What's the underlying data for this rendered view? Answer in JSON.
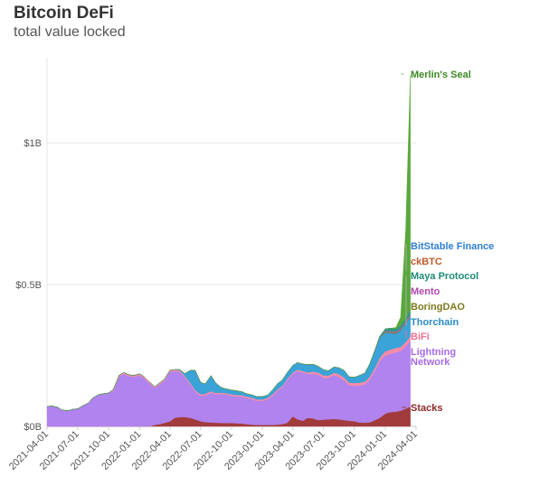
{
  "chart_data": {
    "type": "area",
    "title": "Bitcoin DeFi",
    "subtitle": "total value locked",
    "xlabel": "",
    "ylabel": "",
    "ylim": [
      0,
      1300000000
    ],
    "grid": "horizontal",
    "y_ticks": [
      {
        "value": 0,
        "label": "$0B"
      },
      {
        "value": 500000000,
        "label": "$0.5B"
      },
      {
        "value": 1000000000,
        "label": "$1B"
      }
    ],
    "x_tick_labels": [
      "2021-04-01",
      "2021-07-01",
      "2021-10-01",
      "2022-01-01",
      "2022-04-01",
      "2022-07-01",
      "2022-10-01",
      "2023-01-01",
      "2023-04-01",
      "2023-07-01",
      "2023-10-01",
      "2024-01-01",
      "2024-04-01"
    ],
    "x": [
      "2021-04-01",
      "2021-04-15",
      "2021-05-01",
      "2021-05-15",
      "2021-06-01",
      "2021-06-15",
      "2021-07-01",
      "2021-07-15",
      "2021-08-01",
      "2021-08-15",
      "2021-09-01",
      "2021-09-15",
      "2021-10-01",
      "2021-10-15",
      "2021-11-01",
      "2021-11-15",
      "2021-12-01",
      "2021-12-15",
      "2022-01-01",
      "2022-01-15",
      "2022-02-01",
      "2022-02-15",
      "2022-03-01",
      "2022-03-15",
      "2022-04-01",
      "2022-04-15",
      "2022-05-01",
      "2022-05-15",
      "2022-06-01",
      "2022-06-15",
      "2022-07-01",
      "2022-07-15",
      "2022-08-01",
      "2022-08-15",
      "2022-09-01",
      "2022-09-15",
      "2022-10-01",
      "2022-10-15",
      "2022-11-01",
      "2022-11-15",
      "2022-12-01",
      "2022-12-15",
      "2023-01-01",
      "2023-01-15",
      "2023-02-01",
      "2023-02-15",
      "2023-03-01",
      "2023-03-15",
      "2023-04-01",
      "2023-04-15",
      "2023-05-01",
      "2023-05-15",
      "2023-06-01",
      "2023-06-15",
      "2023-07-01",
      "2023-07-15",
      "2023-08-01",
      "2023-08-15",
      "2023-09-01",
      "2023-09-15",
      "2023-10-01",
      "2023-10-15",
      "2023-11-01",
      "2023-11-15",
      "2023-12-01",
      "2023-12-15",
      "2024-01-01",
      "2024-01-15",
      "2024-02-01",
      "2024-02-15",
      "2024-03-01",
      "2024-03-15"
    ],
    "series": [
      {
        "name": "Stacks",
        "color": "#a23b3b",
        "values": [
          0,
          0,
          0,
          0,
          0,
          0,
          0,
          0,
          0,
          0,
          0,
          0,
          0,
          0,
          0,
          0,
          0,
          0,
          0,
          0,
          0,
          5000000,
          8000000,
          12000000,
          18000000,
          30000000,
          33000000,
          33000000,
          30000000,
          25000000,
          18000000,
          15000000,
          14000000,
          13000000,
          12000000,
          12000000,
          12000000,
          11000000,
          10000000,
          8000000,
          6000000,
          5000000,
          5000000,
          5000000,
          5000000,
          6000000,
          8000000,
          12000000,
          35000000,
          25000000,
          20000000,
          30000000,
          28000000,
          22000000,
          24000000,
          25000000,
          26000000,
          25000000,
          22000000,
          20000000,
          18000000,
          14000000,
          13000000,
          14000000,
          22000000,
          30000000,
          45000000,
          50000000,
          52000000,
          55000000,
          62000000,
          70000000
        ]
      },
      {
        "name": "Lightning Network",
        "color": "#b083ee",
        "values": [
          70000000,
          72000000,
          68000000,
          58000000,
          55000000,
          60000000,
          62000000,
          72000000,
          82000000,
          100000000,
          112000000,
          115000000,
          118000000,
          125000000,
          175000000,
          185000000,
          177000000,
          175000000,
          180000000,
          170000000,
          150000000,
          130000000,
          140000000,
          148000000,
          175000000,
          165000000,
          160000000,
          140000000,
          118000000,
          98000000,
          90000000,
          95000000,
          105000000,
          100000000,
          102000000,
          100000000,
          96000000,
          95000000,
          95000000,
          92000000,
          90000000,
          85000000,
          85000000,
          90000000,
          105000000,
          120000000,
          130000000,
          150000000,
          150000000,
          170000000,
          170000000,
          155000000,
          157000000,
          160000000,
          148000000,
          145000000,
          155000000,
          150000000,
          140000000,
          125000000,
          125000000,
          130000000,
          135000000,
          150000000,
          175000000,
          200000000,
          205000000,
          205000000,
          210000000,
          210000000,
          220000000,
          230000000
        ]
      },
      {
        "name": "BiFi",
        "color": "#f58ba8",
        "values": [
          0,
          0,
          0,
          0,
          0,
          0,
          0,
          0,
          0,
          0,
          0,
          0,
          0,
          5000000,
          5000000,
          5000000,
          5000000,
          5000000,
          5000000,
          5000000,
          5000000,
          5000000,
          5000000,
          5000000,
          5000000,
          5000000,
          5000000,
          5000000,
          5000000,
          5000000,
          5000000,
          5000000,
          5000000,
          5000000,
          5000000,
          5000000,
          5000000,
          5000000,
          5000000,
          5000000,
          5000000,
          5000000,
          5000000,
          5000000,
          5000000,
          5000000,
          5000000,
          5000000,
          5000000,
          5000000,
          5000000,
          5000000,
          8000000,
          8000000,
          8000000,
          8000000,
          8000000,
          10000000,
          10000000,
          10000000,
          10000000,
          10000000,
          10000000,
          10000000,
          10000000,
          12000000,
          15000000,
          15000000,
          15000000,
          15000000,
          15000000,
          18000000
        ]
      },
      {
        "name": "Thorchain",
        "color": "#3aa3d8",
        "values": [
          0,
          0,
          0,
          0,
          0,
          0,
          0,
          0,
          0,
          0,
          0,
          0,
          0,
          0,
          0,
          0,
          0,
          0,
          0,
          0,
          0,
          0,
          0,
          0,
          0,
          0,
          2000000,
          8000000,
          45000000,
          70000000,
          42000000,
          35000000,
          55000000,
          35000000,
          18000000,
          15000000,
          15000000,
          15000000,
          12000000,
          10000000,
          10000000,
          10000000,
          10000000,
          10000000,
          15000000,
          20000000,
          20000000,
          22000000,
          25000000,
          25000000,
          25000000,
          28000000,
          26000000,
          22000000,
          20000000,
          18000000,
          20000000,
          22000000,
          25000000,
          20000000,
          20000000,
          25000000,
          30000000,
          45000000,
          60000000,
          70000000,
          65000000,
          60000000,
          50000000,
          58000000,
          65000000,
          68000000
        ]
      },
      {
        "name": "BoringDAO",
        "color": "#7d7a1f",
        "values": [
          0,
          0,
          0,
          0,
          0,
          0,
          0,
          0,
          0,
          0,
          0,
          0,
          0,
          0,
          0,
          0,
          0,
          0,
          0,
          0,
          0,
          0,
          0,
          0,
          0,
          0,
          0,
          0,
          0,
          0,
          0,
          0,
          0,
          0,
          0,
          0,
          0,
          0,
          0,
          0,
          0,
          0,
          0,
          0,
          0,
          0,
          0,
          0,
          0,
          0,
          0,
          0,
          0,
          0,
          0,
          0,
          0,
          0,
          0,
          0,
          0,
          0,
          0,
          0,
          0,
          0,
          3000000,
          3000000,
          3000000,
          3000000,
          3000000,
          3000000
        ]
      },
      {
        "name": "Mento",
        "color": "#c25dbe",
        "values": [
          0,
          0,
          0,
          0,
          0,
          0,
          0,
          0,
          0,
          0,
          0,
          0,
          0,
          0,
          0,
          0,
          0,
          0,
          0,
          0,
          0,
          0,
          0,
          0,
          0,
          0,
          0,
          0,
          0,
          0,
          0,
          0,
          0,
          0,
          0,
          0,
          0,
          0,
          0,
          0,
          0,
          0,
          0,
          0,
          0,
          0,
          0,
          0,
          0,
          0,
          0,
          0,
          0,
          0,
          0,
          0,
          0,
          0,
          0,
          0,
          0,
          0,
          0,
          0,
          0,
          0,
          3000000,
          3000000,
          4000000,
          4000000,
          5000000,
          5000000
        ]
      },
      {
        "name": "Maya Protocol",
        "color": "#2a9b86",
        "values": [
          0,
          0,
          0,
          0,
          0,
          0,
          0,
          0,
          0,
          0,
          0,
          0,
          0,
          0,
          0,
          0,
          0,
          0,
          0,
          0,
          0,
          0,
          0,
          0,
          0,
          0,
          0,
          0,
          0,
          0,
          0,
          0,
          0,
          0,
          0,
          0,
          0,
          0,
          0,
          0,
          0,
          0,
          0,
          0,
          0,
          0,
          0,
          0,
          0,
          0,
          0,
          0,
          0,
          0,
          0,
          0,
          0,
          0,
          0,
          0,
          0,
          0,
          0,
          0,
          3000000,
          5000000,
          8000000,
          10000000,
          10000000,
          10000000,
          12000000,
          15000000
        ]
      },
      {
        "name": "ckBTC",
        "color": "#c35a2c",
        "values": [
          0,
          0,
          0,
          0,
          0,
          0,
          0,
          0,
          0,
          0,
          0,
          0,
          0,
          0,
          0,
          0,
          0,
          0,
          0,
          0,
          0,
          0,
          0,
          0,
          0,
          0,
          0,
          0,
          0,
          0,
          0,
          0,
          0,
          0,
          0,
          0,
          0,
          0,
          0,
          0,
          0,
          0,
          0,
          0,
          0,
          0,
          0,
          0,
          0,
          0,
          0,
          0,
          0,
          0,
          0,
          0,
          0,
          0,
          0,
          0,
          0,
          0,
          0,
          0,
          0,
          0,
          0,
          0,
          0,
          0,
          0,
          0
        ]
      },
      {
        "name": "BitStable Finance",
        "color": "#2f7fd1",
        "values": [
          0,
          0,
          0,
          0,
          0,
          0,
          0,
          0,
          0,
          0,
          0,
          0,
          0,
          0,
          0,
          0,
          0,
          0,
          0,
          0,
          0,
          0,
          0,
          0,
          0,
          0,
          0,
          0,
          0,
          0,
          0,
          0,
          0,
          0,
          0,
          0,
          0,
          0,
          0,
          0,
          0,
          0,
          0,
          0,
          0,
          0,
          0,
          0,
          0,
          0,
          0,
          0,
          0,
          0,
          0,
          0,
          0,
          0,
          0,
          0,
          0,
          0,
          0,
          0,
          0,
          0,
          0,
          0,
          0,
          0,
          0,
          0
        ]
      },
      {
        "name": "Merlin's Seal",
        "color": "#58a83c",
        "values": [
          0,
          0,
          0,
          0,
          0,
          0,
          0,
          0,
          0,
          0,
          0,
          0,
          0,
          0,
          0,
          0,
          0,
          0,
          0,
          0,
          0,
          0,
          0,
          0,
          0,
          0,
          0,
          0,
          0,
          0,
          0,
          0,
          0,
          0,
          0,
          0,
          0,
          0,
          0,
          0,
          0,
          0,
          0,
          0,
          0,
          0,
          0,
          0,
          0,
          0,
          0,
          0,
          0,
          0,
          0,
          0,
          0,
          0,
          0,
          0,
          0,
          0,
          0,
          0,
          0,
          0,
          0,
          0,
          5000000,
          30000000,
          310000000,
          830000000
        ]
      }
    ],
    "series_labels": [
      {
        "text": "Merlin's Seal",
        "color": "#3c8a25"
      },
      {
        "text": "BitStable Finance",
        "color": "#2f7fd1"
      },
      {
        "text": "ckBTC",
        "color": "#c35a2c"
      },
      {
        "text": "Maya Protocol",
        "color": "#1f8a76"
      },
      {
        "text": "Mento",
        "color": "#b347b0"
      },
      {
        "text": "BoringDAO",
        "color": "#7d7a1f"
      },
      {
        "text": "Thorchain",
        "color": "#2b8dc4"
      },
      {
        "text": "BiFi",
        "color": "#ee6f93"
      },
      {
        "text": "Lightning",
        "color": "#a66ae6"
      },
      {
        "text": "Network",
        "color": "#a66ae6"
      },
      {
        "text": "Stacks",
        "color": "#8c2a2a"
      }
    ]
  }
}
